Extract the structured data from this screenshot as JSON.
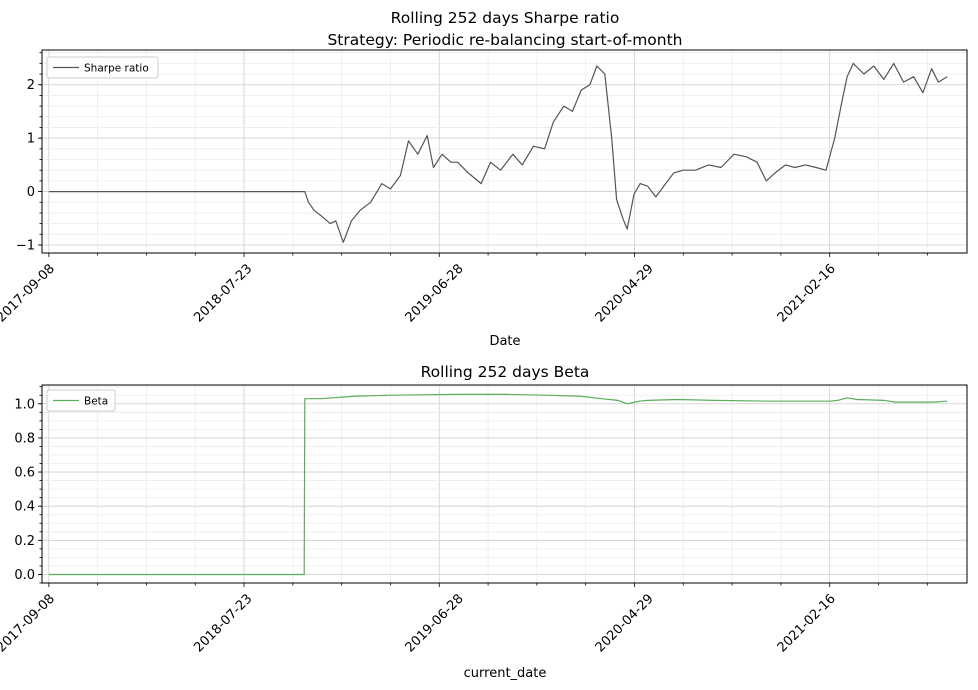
{
  "chart_data": [
    {
      "type": "line",
      "title": "Rolling 252 days Sharpe ratio",
      "subtitle": "Strategy: Periodic re-balancing start-of-month",
      "xlabel": "Date",
      "ylabel": "",
      "x_range": [
        "2017-08-28",
        "2021-09-25"
      ],
      "ylim": [
        -1.15,
        2.65
      ],
      "x_tick_labels": [
        "2017-09-08",
        "2018-07-23",
        "2019-06-28",
        "2020-04-29",
        "2021-02-16"
      ],
      "y_tick_labels": [
        "−1",
        "0",
        "1",
        "2"
      ],
      "y_tick_values": [
        -1,
        0,
        1,
        2
      ],
      "grid": true,
      "legend_position": "top-left",
      "series": [
        {
          "name": "Sharpe ratio",
          "color": "#555555",
          "points": [
            [
              "2017-09-08",
              0.0
            ],
            [
              "2018-10-25",
              0.0
            ],
            [
              "2018-10-31",
              -0.2
            ],
            [
              "2018-11-09",
              -0.35
            ],
            [
              "2018-11-20",
              -0.45
            ],
            [
              "2018-12-05",
              -0.6
            ],
            [
              "2018-12-14",
              -0.55
            ],
            [
              "2018-12-26",
              -0.95
            ],
            [
              "2019-01-08",
              -0.55
            ],
            [
              "2019-01-22",
              -0.35
            ],
            [
              "2019-02-08",
              -0.2
            ],
            [
              "2019-02-26",
              0.15
            ],
            [
              "2019-03-12",
              0.05
            ],
            [
              "2019-03-28",
              0.3
            ],
            [
              "2019-04-10",
              0.95
            ],
            [
              "2019-04-25",
              0.7
            ],
            [
              "2019-05-10",
              1.05
            ],
            [
              "2019-05-20",
              0.45
            ],
            [
              "2019-06-03",
              0.7
            ],
            [
              "2019-06-17",
              0.55
            ],
            [
              "2019-06-28",
              0.55
            ],
            [
              "2019-07-15",
              0.35
            ],
            [
              "2019-08-05",
              0.15
            ],
            [
              "2019-08-20",
              0.55
            ],
            [
              "2019-09-05",
              0.4
            ],
            [
              "2019-09-25",
              0.7
            ],
            [
              "2019-10-10",
              0.5
            ],
            [
              "2019-10-28",
              0.85
            ],
            [
              "2019-11-15",
              0.8
            ],
            [
              "2019-11-29",
              1.3
            ],
            [
              "2019-12-16",
              1.6
            ],
            [
              "2019-12-30",
              1.5
            ],
            [
              "2020-01-13",
              1.9
            ],
            [
              "2020-01-27",
              2.0
            ],
            [
              "2020-02-07",
              2.35
            ],
            [
              "2020-02-20",
              2.2
            ],
            [
              "2020-03-02",
              1.0
            ],
            [
              "2020-03-10",
              -0.15
            ],
            [
              "2020-03-20",
              -0.5
            ],
            [
              "2020-03-27",
              -0.7
            ],
            [
              "2020-04-07",
              -0.05
            ],
            [
              "2020-04-17",
              0.15
            ],
            [
              "2020-04-29",
              0.1
            ],
            [
              "2020-05-12",
              -0.1
            ],
            [
              "2020-05-28",
              0.15
            ],
            [
              "2020-06-10",
              0.35
            ],
            [
              "2020-06-25",
              0.4
            ],
            [
              "2020-07-15",
              0.4
            ],
            [
              "2020-08-05",
              0.5
            ],
            [
              "2020-08-25",
              0.45
            ],
            [
              "2020-09-15",
              0.7
            ],
            [
              "2020-10-05",
              0.65
            ],
            [
              "2020-10-22",
              0.55
            ],
            [
              "2020-11-06",
              0.2
            ],
            [
              "2020-11-20",
              0.35
            ],
            [
              "2020-12-07",
              0.5
            ],
            [
              "2020-12-22",
              0.45
            ],
            [
              "2021-01-08",
              0.5
            ],
            [
              "2021-01-25",
              0.45
            ],
            [
              "2021-02-10",
              0.4
            ],
            [
              "2021-02-24",
              1.0
            ],
            [
              "2021-03-08",
              1.7
            ],
            [
              "2021-03-16",
              2.15
            ],
            [
              "2021-03-26",
              2.4
            ],
            [
              "2021-04-12",
              2.2
            ],
            [
              "2021-04-28",
              2.35
            ],
            [
              "2021-05-14",
              2.1
            ],
            [
              "2021-05-30",
              2.4
            ],
            [
              "2021-06-15",
              2.05
            ],
            [
              "2021-07-01",
              2.15
            ],
            [
              "2021-07-16",
              1.85
            ],
            [
              "2021-07-30",
              2.3
            ],
            [
              "2021-08-10",
              2.05
            ],
            [
              "2021-08-24",
              2.15
            ]
          ]
        }
      ]
    },
    {
      "type": "line",
      "title": "Rolling 252 days Beta",
      "xlabel": "current_date",
      "ylabel": "",
      "x_range": [
        "2017-08-28",
        "2021-09-25"
      ],
      "ylim": [
        -0.05,
        1.11
      ],
      "x_tick_labels": [
        "2017-09-08",
        "2018-07-23",
        "2019-06-28",
        "2020-04-29",
        "2021-02-16"
      ],
      "y_tick_labels": [
        "0.0",
        "0.2",
        "0.4",
        "0.6",
        "0.8",
        "1.0"
      ],
      "y_tick_values": [
        0.0,
        0.2,
        0.4,
        0.6,
        0.8,
        1.0
      ],
      "grid": true,
      "legend_position": "top-left",
      "series": [
        {
          "name": "Beta",
          "color": "#5aad5a",
          "points": [
            [
              "2017-09-08",
              0.0
            ],
            [
              "2018-10-24",
              0.0
            ],
            [
              "2018-10-25",
              1.03
            ],
            [
              "2018-11-20",
              1.03
            ],
            [
              "2019-01-15",
              1.045
            ],
            [
              "2019-03-15",
              1.05
            ],
            [
              "2019-06-28",
              1.055
            ],
            [
              "2019-09-15",
              1.055
            ],
            [
              "2019-11-15",
              1.05
            ],
            [
              "2020-01-10",
              1.045
            ],
            [
              "2020-02-15",
              1.03
            ],
            [
              "2020-03-12",
              1.02
            ],
            [
              "2020-03-27",
              1.0
            ],
            [
              "2020-04-15",
              1.015
            ],
            [
              "2020-04-29",
              1.02
            ],
            [
              "2020-06-15",
              1.025
            ],
            [
              "2020-08-15",
              1.02
            ],
            [
              "2020-11-15",
              1.015
            ],
            [
              "2021-01-15",
              1.015
            ],
            [
              "2021-02-16",
              1.015
            ],
            [
              "2021-03-01",
              1.02
            ],
            [
              "2021-03-16",
              1.035
            ],
            [
              "2021-04-01",
              1.025
            ],
            [
              "2021-05-15",
              1.02
            ],
            [
              "2021-06-01",
              1.01
            ],
            [
              "2021-07-01",
              1.01
            ],
            [
              "2021-08-01",
              1.01
            ],
            [
              "2021-08-24",
              1.015
            ]
          ]
        }
      ]
    }
  ]
}
